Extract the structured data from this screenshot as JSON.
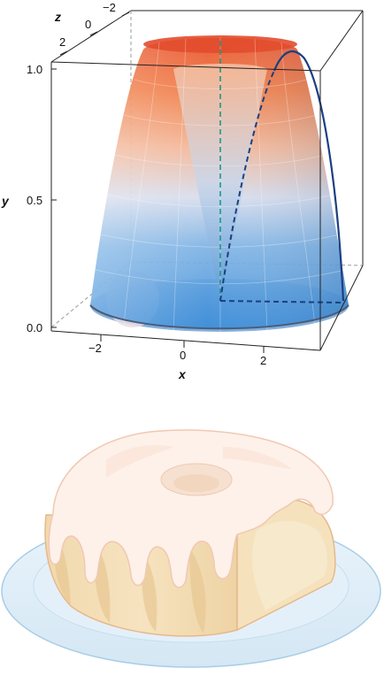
{
  "figure_top": {
    "axes": {
      "x_label": "x",
      "y_label": "y",
      "z_label": "z",
      "x_ticks": [
        "−2",
        "0",
        "2"
      ],
      "y_ticks": [
        "0.0",
        "0.5",
        "1.0"
      ],
      "z_ticks": [
        "−2",
        "0",
        "2"
      ]
    }
  },
  "figure_bottom": {
    "icon": "bundt-cake-slice-icon"
  }
}
